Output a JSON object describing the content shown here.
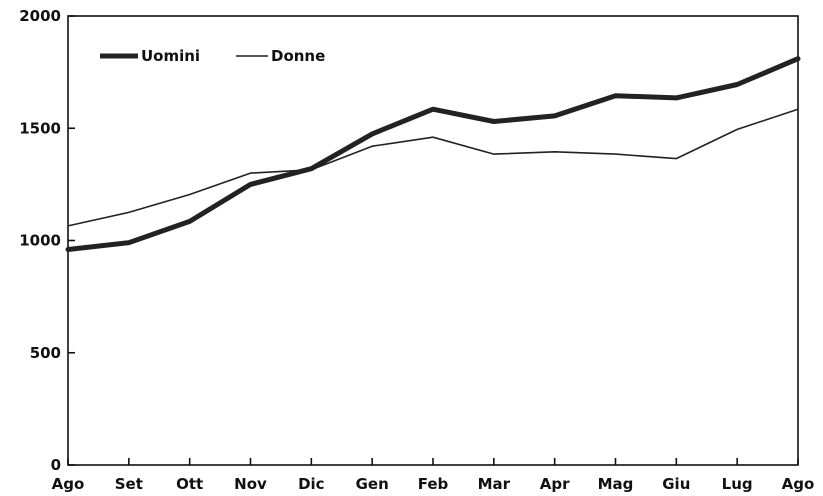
{
  "chart_data": {
    "type": "line",
    "title": "",
    "xlabel": "",
    "ylabel": "",
    "categories": [
      "Ago",
      "Set",
      "Ott",
      "Nov",
      "Dic",
      "Gen",
      "Feb",
      "Mar",
      "Apr",
      "Mag",
      "Giu",
      "Lug",
      "Ago"
    ],
    "ylim": [
      0,
      2000
    ],
    "yticks": [
      0,
      500,
      1000,
      1500,
      2000
    ],
    "grid": false,
    "legend_position": "top-left",
    "series": [
      {
        "name": "Uomini",
        "color": "#222222",
        "values": [
          960,
          990,
          1085,
          1250,
          1320,
          1475,
          1585,
          1530,
          1555,
          1645,
          1635,
          1695,
          1810
        ]
      },
      {
        "name": "Donne",
        "color": "#222222",
        "values": [
          1065,
          1125,
          1205,
          1300,
          1315,
          1420,
          1460,
          1385,
          1395,
          1385,
          1365,
          1495,
          1585
        ]
      }
    ]
  }
}
